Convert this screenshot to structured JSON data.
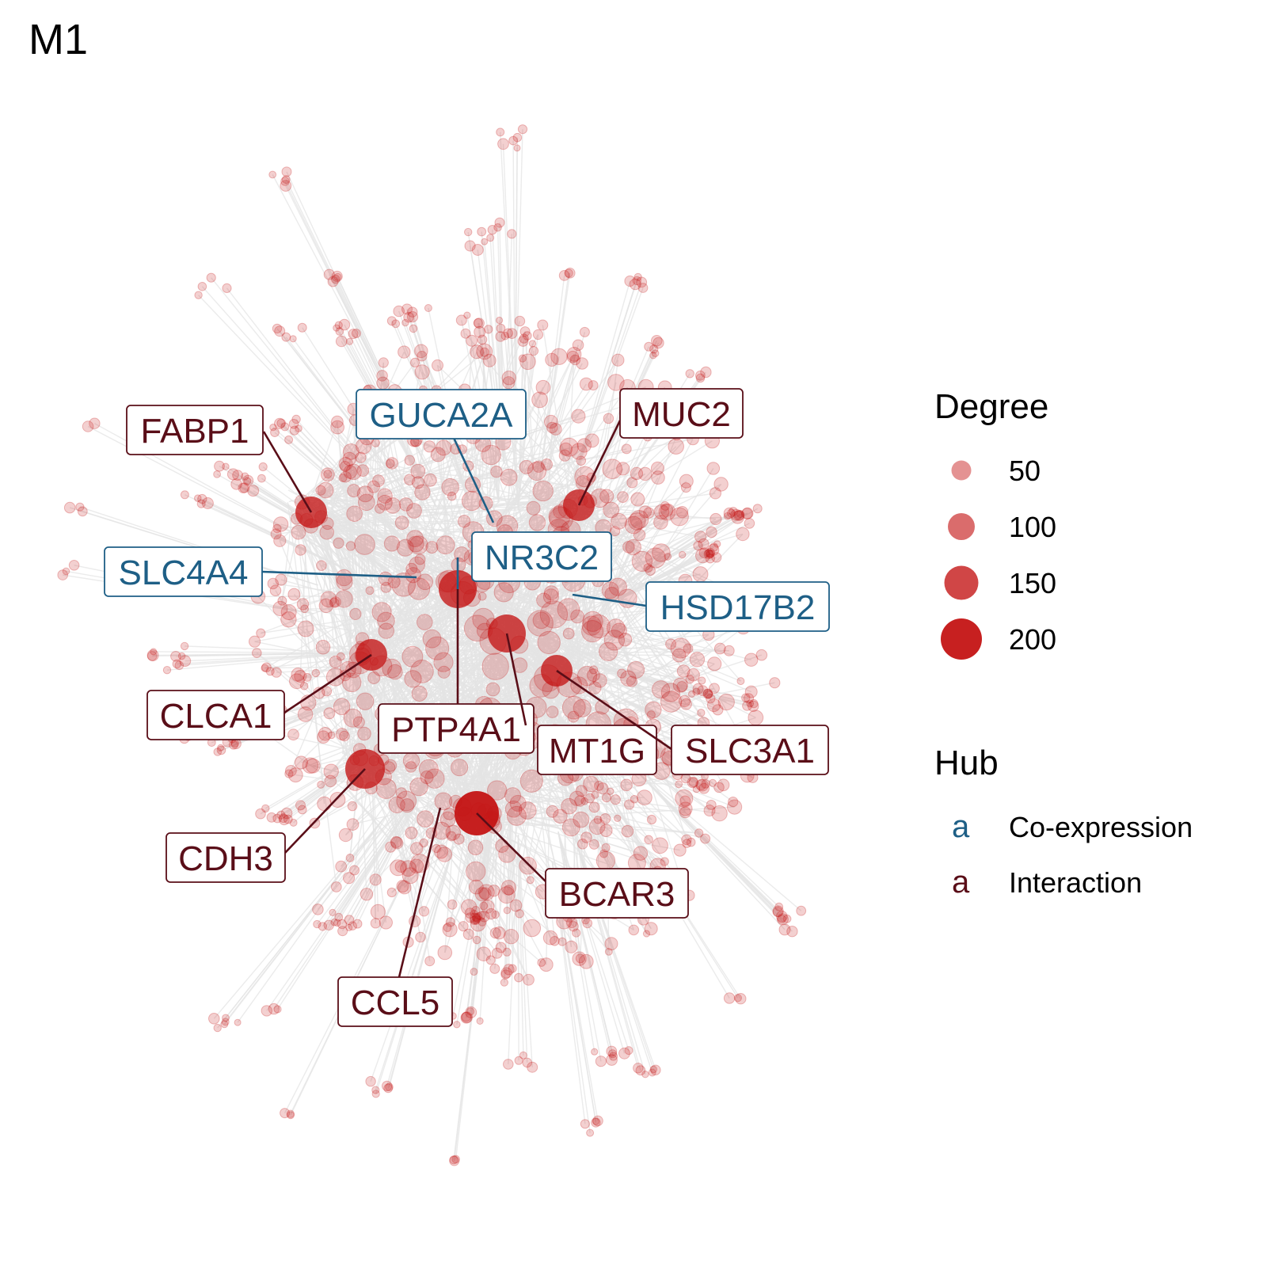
{
  "title": "M1",
  "colors": {
    "node": "#c41414",
    "edge": "#e4e4e4",
    "coexpression": "#1e5f86",
    "interaction": "#5a0e18",
    "background": "#ffffff"
  },
  "hubs": [
    {
      "gene": "FABP1",
      "type": "interaction"
    },
    {
      "gene": "GUCA2A",
      "type": "coexpression"
    },
    {
      "gene": "MUC2",
      "type": "interaction"
    },
    {
      "gene": "NR3C2",
      "type": "coexpression"
    },
    {
      "gene": "SLC4A4",
      "type": "coexpression"
    },
    {
      "gene": "HSD17B2",
      "type": "coexpression"
    },
    {
      "gene": "CLCA1",
      "type": "interaction"
    },
    {
      "gene": "PTP4A1",
      "type": "interaction"
    },
    {
      "gene": "MT1G",
      "type": "interaction"
    },
    {
      "gene": "SLC3A1",
      "type": "interaction"
    },
    {
      "gene": "CDH3",
      "type": "interaction"
    },
    {
      "gene": "BCAR3",
      "type": "interaction"
    },
    {
      "gene": "CCL5",
      "type": "interaction"
    }
  ],
  "legend": {
    "degree": {
      "title": "Degree",
      "items": [
        {
          "label": "50",
          "value": 50
        },
        {
          "label": "100",
          "value": 100
        },
        {
          "label": "150",
          "value": 150
        },
        {
          "label": "200",
          "value": 200
        }
      ]
    },
    "hub": {
      "title": "Hub",
      "items": [
        {
          "key": "a",
          "label": "Co-expression",
          "type": "coexpression"
        },
        {
          "key": "a",
          "label": "Interaction",
          "type": "interaction"
        }
      ]
    }
  }
}
